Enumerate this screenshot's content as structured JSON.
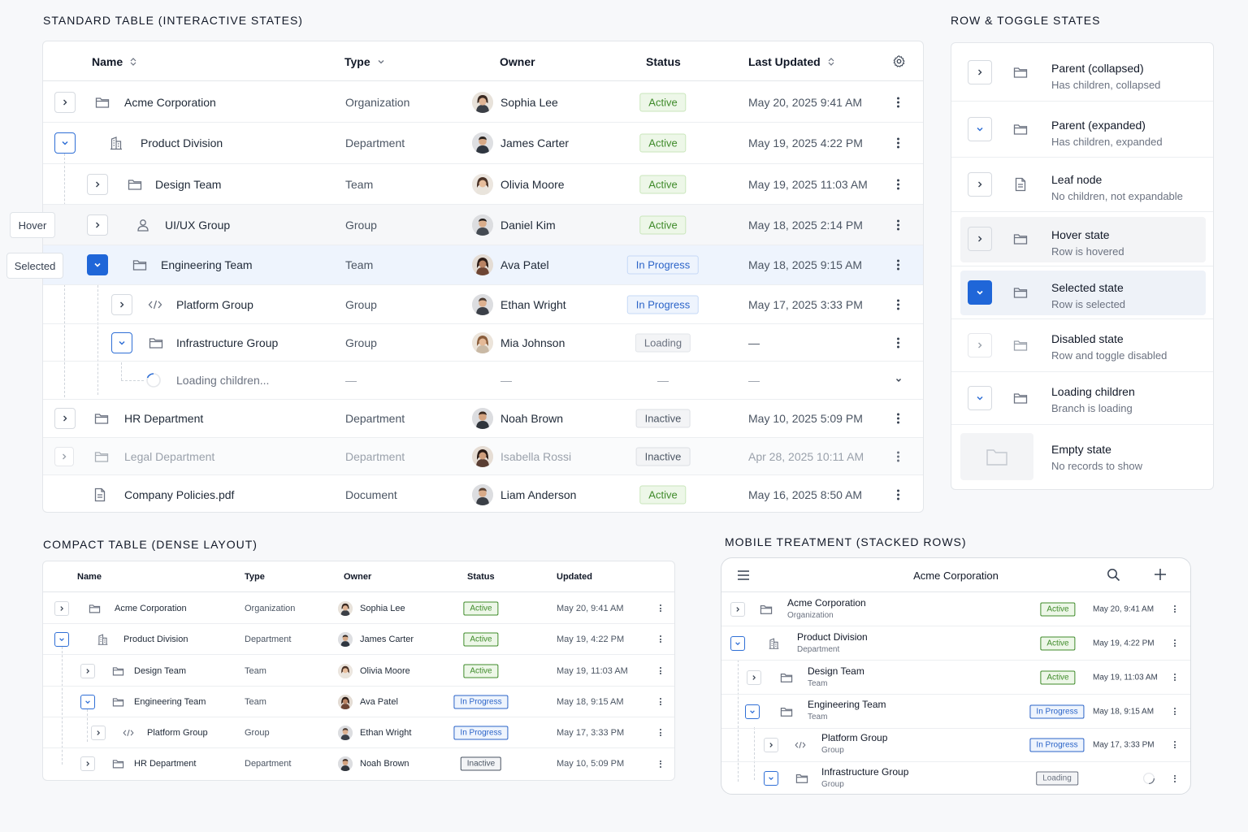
{
  "standard": {
    "title": "STANDARD TABLE (INTERACTIVE STATES)",
    "columns": {
      "name": "Name",
      "type": "Type",
      "owner": "Owner",
      "status": "Status",
      "updated": "Last Updated"
    },
    "rows": [
      {
        "name": "Acme Corporation",
        "type": "Organization",
        "owner": "Sophia Lee",
        "status": "Active",
        "updated": "May 20, 2025 9:41 AM"
      },
      {
        "name": "Product Division",
        "type": "Department",
        "owner": "James Carter",
        "status": "Active",
        "updated": "May 19, 2025 4:22 PM"
      },
      {
        "name": "Design Team",
        "type": "Team",
        "owner": "Olivia Moore",
        "status": "Active",
        "updated": "May 19, 2025 11:03 AM"
      },
      {
        "name": "UI/UX Group",
        "type": "Group",
        "owner": "Daniel Kim",
        "status": "Active",
        "updated": "May 18, 2025 2:14 PM"
      },
      {
        "name": "Engineering Team",
        "type": "Team",
        "owner": "Ava Patel",
        "status": "In Progress",
        "updated": "May 18, 2025 9:15 AM"
      },
      {
        "name": "Platform Group",
        "type": "Group",
        "owner": "Ethan Wright",
        "status": "In Progress",
        "updated": "May 17, 2025 3:33 PM"
      },
      {
        "name": "Infrastructure Group",
        "type": "Group",
        "owner": "Mia Johnson",
        "status": "Loading",
        "updated": "—"
      },
      {
        "name": "Loading children...",
        "type": "—",
        "owner": "—",
        "status": "—",
        "updated": "—"
      },
      {
        "name": "HR Department",
        "type": "Department",
        "owner": "Noah Brown",
        "status": "Inactive",
        "updated": "May 10, 2025 5:09 PM"
      },
      {
        "name": "Legal Department",
        "type": "Department",
        "owner": "Isabella Rossi",
        "status": "Inactive",
        "updated": "Apr 28, 2025 10:11 AM"
      },
      {
        "name": "Company Policies.pdf",
        "type": "Document",
        "owner": "Liam Anderson",
        "status": "Active",
        "updated": "May 16, 2025 8:50 AM"
      }
    ]
  },
  "side_labels": {
    "hover": "Hover",
    "selected": "Selected"
  },
  "states": {
    "title": "ROW & TOGGLE STATES",
    "items": [
      {
        "title": "Parent (collapsed)",
        "desc": "Has children, collapsed"
      },
      {
        "title": "Parent (expanded)",
        "desc": "Has children, expanded"
      },
      {
        "title": "Leaf node",
        "desc": "No children, not expandable"
      },
      {
        "title": "Hover state",
        "desc": "Row is hovered"
      },
      {
        "title": "Selected state",
        "desc": "Row is selected"
      },
      {
        "title": "Disabled state",
        "desc": "Row and toggle disabled"
      },
      {
        "title": "Loading children",
        "desc": "Branch is loading"
      },
      {
        "title": "Empty state",
        "desc": "No records to show"
      }
    ]
  },
  "compact": {
    "title": "COMPACT TABLE (DENSE LAYOUT)",
    "columns": {
      "name": "Name",
      "type": "Type",
      "owner": "Owner",
      "status": "Status",
      "updated": "Updated"
    },
    "rows": [
      {
        "name": "Acme Corporation",
        "type": "Organization",
        "owner": "Sophia Lee",
        "status": "Active",
        "updated": "May 20, 9:41 AM"
      },
      {
        "name": "Product Division",
        "type": "Department",
        "owner": "James Carter",
        "status": "Active",
        "updated": "May 19, 4:22 PM"
      },
      {
        "name": "Design Team",
        "type": "Team",
        "owner": "Olivia Moore",
        "status": "Active",
        "updated": "May 19, 11:03 AM"
      },
      {
        "name": "Engineering Team",
        "type": "Team",
        "owner": "Ava Patel",
        "status": "In Progress",
        "updated": "May 18, 9:15 AM"
      },
      {
        "name": "Platform Group",
        "type": "Group",
        "owner": "Ethan Wright",
        "status": "In Progress",
        "updated": "May 17, 3:33 PM"
      },
      {
        "name": "HR Department",
        "type": "Department",
        "owner": "Noah Brown",
        "status": "Inactive",
        "updated": "May 10, 5:09 PM"
      }
    ]
  },
  "mobile": {
    "title": "MOBILE TREATMENT (STACKED ROWS)",
    "header": "Acme Corporation",
    "rows": [
      {
        "name": "Acme Corporation",
        "type": "Organization",
        "status": "Active",
        "updated": "May 20, 9:41 AM"
      },
      {
        "name": "Product Division",
        "type": "Department",
        "status": "Active",
        "updated": "May 19, 4:22 PM"
      },
      {
        "name": "Design Team",
        "type": "Team",
        "status": "Active",
        "updated": "May 19, 11:03 AM"
      },
      {
        "name": "Engineering Team",
        "type": "Team",
        "status": "In Progress",
        "updated": "May 18, 9:15 AM"
      },
      {
        "name": "Platform Group",
        "type": "Group",
        "status": "In Progress",
        "updated": "May 17, 3:33 PM"
      },
      {
        "name": "Infrastructure Group",
        "type": "Group",
        "status": "Loading",
        "updated": ""
      }
    ]
  },
  "colors": {
    "accent": "#1f66d8",
    "active": "#3f8b2a",
    "progress": "#2a63c8",
    "selected_bg": "#eef4fd"
  }
}
